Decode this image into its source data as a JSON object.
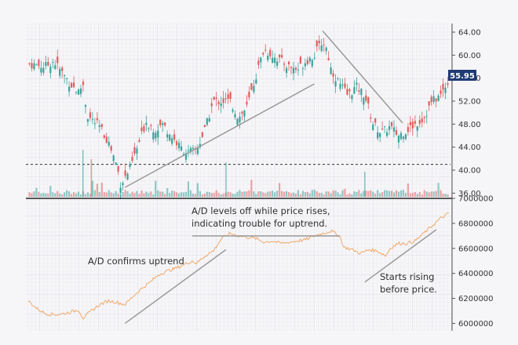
{
  "chart_data": [
    {
      "type": "candlestick",
      "panel": "price",
      "yticks": [
        "64.00",
        "60.00",
        "56.00",
        "52.00",
        "48.00",
        "44.00",
        "40.00",
        "36.00"
      ],
      "ylim": [
        35.5,
        65.5
      ],
      "x": [
        0,
        100
      ],
      "last_price": "55.95",
      "reference_level": 41,
      "colors": {
        "up": "#3aa39a",
        "down": "#e05e5e",
        "price_tag": "#1f3b73",
        "trendline": "#9a9a9a"
      },
      "series": [
        {
          "name": "price_close",
          "points": [
            [
              0,
              58.5
            ],
            [
              4,
              58.0
            ],
            [
              6,
              59.0
            ],
            [
              8,
              57.0
            ],
            [
              10,
              55.0
            ],
            [
              12,
              53.5
            ],
            [
              13,
              55.2
            ],
            [
              14,
              49.5
            ],
            [
              17,
              47.5
            ],
            [
              19,
              45.0
            ],
            [
              21,
              41.0
            ],
            [
              22,
              37.5
            ],
            [
              24,
              40.0
            ],
            [
              26,
              44.0
            ],
            [
              28,
              48.5
            ],
            [
              30,
              47.0
            ],
            [
              32,
              48.0
            ],
            [
              34,
              46.0
            ],
            [
              36,
              44.0
            ],
            [
              38,
              43.0
            ],
            [
              40,
              43.5
            ],
            [
              42,
              47.0
            ],
            [
              44,
              52.0
            ],
            [
              46,
              52.0
            ],
            [
              48,
              52.0
            ],
            [
              50,
              49.0
            ],
            [
              52,
              51.0
            ],
            [
              54,
              56.0
            ],
            [
              56,
              61.0
            ],
            [
              58,
              60.0
            ],
            [
              60,
              59.0
            ],
            [
              62,
              58.0
            ],
            [
              64,
              57.5
            ],
            [
              66,
              59.0
            ],
            [
              68,
              60.0
            ],
            [
              70,
              62.5
            ],
            [
              71,
              61.0
            ],
            [
              72,
              57.5
            ],
            [
              74,
              55.0
            ],
            [
              76,
              53.0
            ],
            [
              78,
              54.5
            ],
            [
              80,
              53.0
            ],
            [
              82,
              48.0
            ],
            [
              84,
              46.5
            ],
            [
              86,
              47.5
            ],
            [
              88,
              46.0
            ],
            [
              90,
              47.0
            ],
            [
              92,
              48.0
            ],
            [
              94,
              49.0
            ],
            [
              96,
              52.0
            ],
            [
              98,
              53.0
            ],
            [
              100,
              55.95
            ]
          ]
        }
      ],
      "trendlines": [
        {
          "name": "uptrend",
          "points": [
            [
              23,
              37
            ],
            [
              68,
              55
            ]
          ]
        },
        {
          "name": "downtrend",
          "points": [
            [
              70,
              64.2
            ],
            [
              89,
              48.2
            ]
          ]
        }
      ]
    },
    {
      "type": "line",
      "panel": "accumulation_distribution",
      "yticks": [
        "7000000",
        "6800000",
        "6600000",
        "6400000",
        "6200000",
        "6000000"
      ],
      "ylim": [
        5940000,
        7000000
      ],
      "x": [
        0,
        100
      ],
      "color": "#f0a868",
      "series": [
        {
          "name": "ad",
          "points": [
            [
              0,
              6180000
            ],
            [
              2,
              6120000
            ],
            [
              4,
              6080000
            ],
            [
              6,
              6070000
            ],
            [
              8,
              6075000
            ],
            [
              10,
              6090000
            ],
            [
              12,
              6110000
            ],
            [
              13,
              6040000
            ],
            [
              15,
              6100000
            ],
            [
              17,
              6150000
            ],
            [
              19,
              6180000
            ],
            [
              21,
              6170000
            ],
            [
              23,
              6150000
            ],
            [
              25,
              6220000
            ],
            [
              27,
              6280000
            ],
            [
              29,
              6330000
            ],
            [
              31,
              6390000
            ],
            [
              33,
              6420000
            ],
            [
              35,
              6440000
            ],
            [
              37,
              6470000
            ],
            [
              39,
              6500000
            ],
            [
              40,
              6480000
            ],
            [
              42,
              6540000
            ],
            [
              44,
              6580000
            ],
            [
              46,
              6680000
            ],
            [
              48,
              6720000
            ],
            [
              50,
              6700000
            ],
            [
              52,
              6690000
            ],
            [
              54,
              6680000
            ],
            [
              56,
              6650000
            ],
            [
              58,
              6660000
            ],
            [
              60,
              6640000
            ],
            [
              62,
              6650000
            ],
            [
              64,
              6660000
            ],
            [
              66,
              6670000
            ],
            [
              68,
              6700000
            ],
            [
              70,
              6720000
            ],
            [
              72,
              6740000
            ],
            [
              74,
              6700000
            ],
            [
              75,
              6610000
            ],
            [
              77,
              6590000
            ],
            [
              79,
              6560000
            ],
            [
              81,
              6590000
            ],
            [
              83,
              6580000
            ],
            [
              85,
              6540000
            ],
            [
              86,
              6600000
            ],
            [
              88,
              6640000
            ],
            [
              90,
              6640000
            ],
            [
              92,
              6660000
            ],
            [
              94,
              6720000
            ],
            [
              96,
              6780000
            ],
            [
              98,
              6840000
            ],
            [
              100,
              6880000
            ]
          ]
        }
      ],
      "trendlines": [
        {
          "name": "confirms",
          "points": [
            [
              23,
              6000000
            ],
            [
              47,
              6590000
            ]
          ]
        },
        {
          "name": "levels_off",
          "points": [
            [
              39,
              6700000
            ],
            [
              74,
              6700000
            ]
          ]
        },
        {
          "name": "rising",
          "points": [
            [
              80,
              6330000
            ],
            [
              97,
              6750000
            ]
          ]
        }
      ]
    }
  ],
  "annotations": {
    "confirms": "A/D confirms uptrend",
    "levels_off_1": "A/D levels off while price rises,",
    "levels_off_2": "indicating trouble for uptrend.",
    "rising_1": "Starts rising",
    "rising_2": "before price."
  }
}
